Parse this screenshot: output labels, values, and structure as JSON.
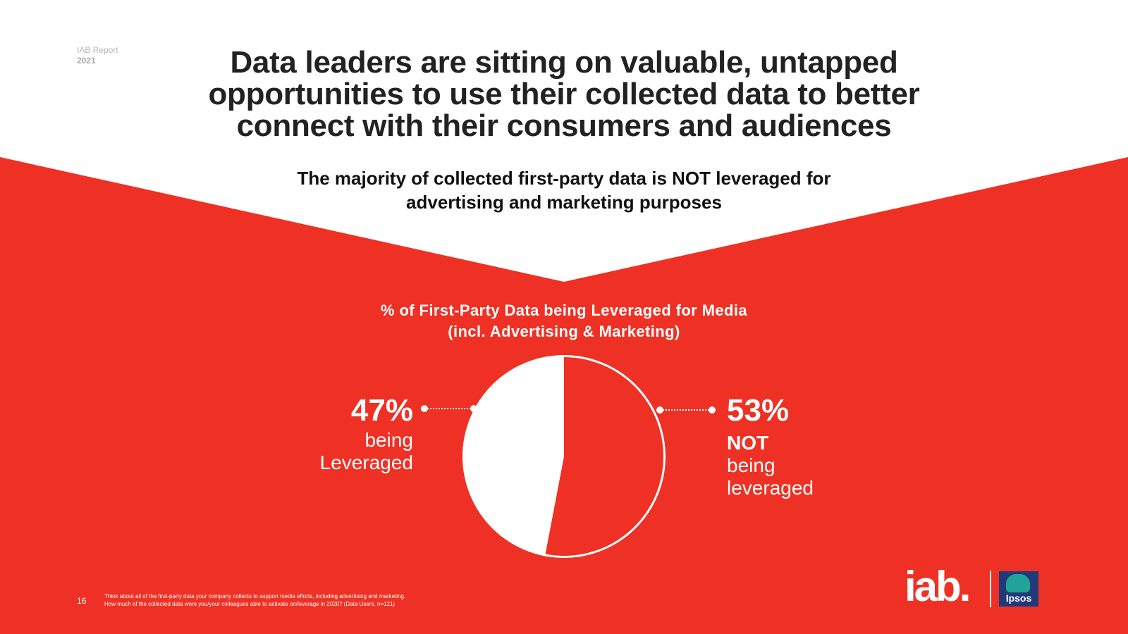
{
  "report": {
    "label": "IAB Report",
    "year": "2021"
  },
  "title": "Data leaders are sitting on valuable, untapped opportunities to use their collected data to better connect with their consumers and audiences",
  "subtitle": "The majority of collected first-party data is NOT leveraged for advertising and marketing purposes",
  "colors": {
    "accent": "#ee3124",
    "text_dark": "#222222",
    "white": "#ffffff"
  },
  "chart_data": {
    "type": "pie",
    "title": "% of First-Party Data being Leveraged for Media (incl. Advertising & Marketing)",
    "title_line1": "% of First-Party Data being Leveraged for Media",
    "title_line2": "(incl. Advertising & Marketing)",
    "categories": [
      "being Leveraged",
      "NOT being leveraged"
    ],
    "values": [
      47,
      53
    ],
    "unit": "%",
    "labels": [
      {
        "value": "47%",
        "text_lines": [
          "being",
          "Leveraged"
        ]
      },
      {
        "value": "53%",
        "bold_line": "NOT",
        "text_lines": [
          "being",
          "leveraged"
        ]
      }
    ]
  },
  "footer": {
    "page_number": "16",
    "footnote_line1": "Think about all of the first-party data your company collects to support media efforts, including advertising and marketing.",
    "footnote_line2": "How much of the collected data were you/your colleagues able to activate on/leverage in 2020? (Data Users, n=121)",
    "iab_logo": "iab.",
    "ipsos_logo": "Ipsos"
  }
}
